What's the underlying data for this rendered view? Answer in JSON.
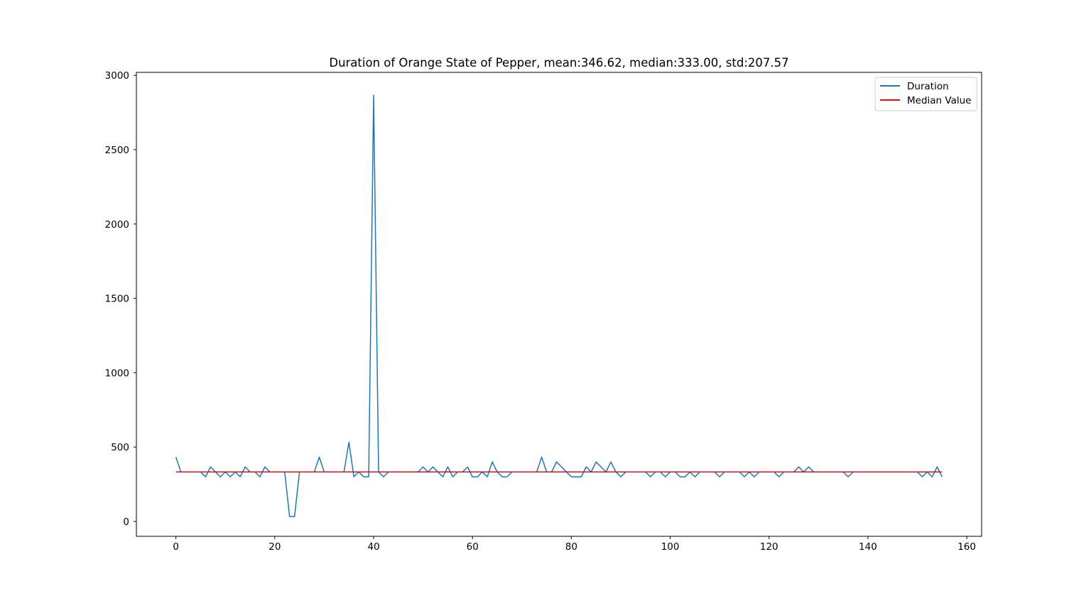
{
  "chart_data": {
    "type": "line",
    "title": "Duration of Orange State of Pepper, mean:346.62, median:333.00, std:207.57",
    "xlabel": "",
    "ylabel": "",
    "xlim": [
      -8,
      163
    ],
    "ylim": [
      -100,
      3020
    ],
    "xticks": [
      0,
      20,
      40,
      60,
      80,
      100,
      120,
      140,
      160
    ],
    "yticks": [
      0,
      500,
      1000,
      1500,
      2000,
      2500,
      3000
    ],
    "grid": false,
    "legend_position": "upper right",
    "series": [
      {
        "name": "Duration",
        "color": "#1f77b4",
        "x": [
          0,
          1,
          2,
          3,
          4,
          5,
          6,
          7,
          8,
          9,
          10,
          11,
          12,
          13,
          14,
          15,
          16,
          17,
          18,
          19,
          20,
          21,
          22,
          23,
          24,
          25,
          26,
          27,
          28,
          29,
          30,
          31,
          32,
          33,
          34,
          35,
          36,
          37,
          38,
          39,
          40,
          41,
          42,
          43,
          44,
          45,
          46,
          47,
          48,
          49,
          50,
          51,
          52,
          53,
          54,
          55,
          56,
          57,
          58,
          59,
          60,
          61,
          62,
          63,
          64,
          65,
          66,
          67,
          68,
          69,
          70,
          71,
          72,
          73,
          74,
          75,
          76,
          77,
          78,
          79,
          80,
          81,
          82,
          83,
          84,
          85,
          86,
          87,
          88,
          89,
          90,
          91,
          92,
          93,
          94,
          95,
          96,
          97,
          98,
          99,
          100,
          101,
          102,
          103,
          104,
          105,
          106,
          107,
          108,
          109,
          110,
          111,
          112,
          113,
          114,
          115,
          116,
          117,
          118,
          119,
          120,
          121,
          122,
          123,
          124,
          125,
          126,
          127,
          128,
          129,
          130,
          131,
          132,
          133,
          134,
          135,
          136,
          137,
          138,
          139,
          140,
          141,
          142,
          143,
          144,
          145,
          146,
          147,
          148,
          149,
          150,
          151,
          152,
          153,
          154,
          155
        ],
        "y": [
          433,
          333,
          333,
          333,
          333,
          333,
          300,
          367,
          333,
          300,
          333,
          300,
          333,
          300,
          367,
          333,
          333,
          300,
          367,
          333,
          333,
          333,
          333,
          33,
          33,
          333,
          333,
          333,
          333,
          433,
          333,
          333,
          333,
          333,
          333,
          533,
          300,
          333,
          300,
          300,
          2867,
          333,
          300,
          333,
          333,
          333,
          333,
          333,
          333,
          333,
          367,
          333,
          367,
          333,
          300,
          367,
          300,
          333,
          333,
          367,
          300,
          300,
          333,
          300,
          400,
          333,
          300,
          300,
          333,
          333,
          333,
          333,
          333,
          333,
          433,
          333,
          333,
          400,
          367,
          333,
          300,
          300,
          300,
          367,
          333,
          400,
          367,
          333,
          400,
          333,
          300,
          333,
          333,
          333,
          333,
          333,
          300,
          333,
          333,
          300,
          333,
          333,
          300,
          300,
          333,
          300,
          333,
          333,
          333,
          333,
          300,
          333,
          333,
          333,
          333,
          300,
          333,
          300,
          333,
          333,
          333,
          333,
          300,
          333,
          333,
          333,
          367,
          333,
          367,
          333,
          333,
          333,
          333,
          333,
          333,
          333,
          300,
          333,
          333,
          333,
          333,
          333,
          333,
          333,
          333,
          333,
          333,
          333,
          333,
          333,
          333,
          300,
          333,
          300,
          367,
          300
        ]
      },
      {
        "name": "Median Value",
        "color": "#ff0000",
        "x": [
          0,
          155
        ],
        "y": [
          333,
          333
        ]
      }
    ]
  }
}
